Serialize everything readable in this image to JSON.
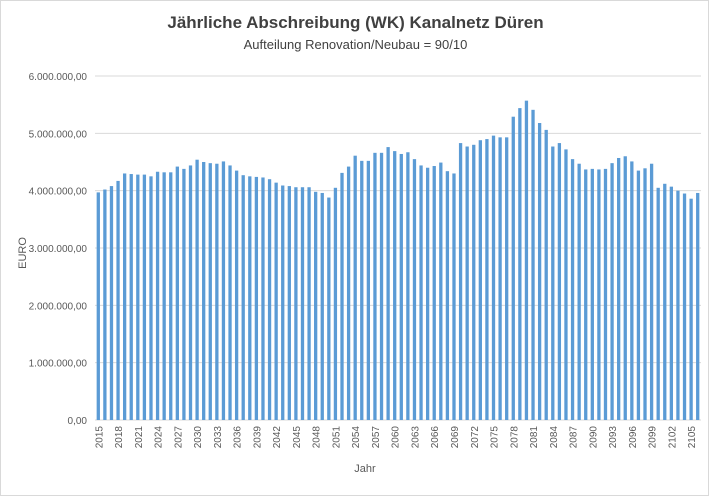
{
  "chart_data": {
    "type": "bar",
    "title": "Jährliche Abschreibung (WK) Kanalnetz Düren",
    "subtitle": "Aufteilung Renovation/Neubau = 90/10",
    "xlabel": "Jahr",
    "ylabel": "EURO",
    "ylim": [
      0,
      6000000
    ],
    "yticks": [
      "0,00",
      "1.000.000,00",
      "2.000.000,00",
      "3.000.000,00",
      "4.000.000,00",
      "5.000.000,00",
      "6.000.000,00"
    ],
    "grid": true,
    "legend": "none",
    "bar_color": "#5b9bd5",
    "grid_color": "#d9d9d9",
    "x_tick_labels": [
      "2015",
      "2018",
      "2021",
      "2024",
      "2027",
      "2030",
      "2033",
      "2036",
      "2039",
      "2042",
      "2045",
      "2048",
      "2051",
      "2054",
      "2057",
      "2060",
      "2063",
      "2066",
      "2069",
      "2072",
      "2075",
      "2078",
      "2081",
      "2084",
      "2087",
      "2090",
      "2093",
      "2096",
      "2099",
      "2102",
      "2105"
    ],
    "x_start": 2015,
    "x_end": 2105,
    "values": [
      3970000,
      4020000,
      4080000,
      4170000,
      4300000,
      4290000,
      4280000,
      4280000,
      4250000,
      4330000,
      4320000,
      4320000,
      4420000,
      4380000,
      4440000,
      4540000,
      4500000,
      4480000,
      4470000,
      4510000,
      4440000,
      4350000,
      4270000,
      4250000,
      4240000,
      4230000,
      4200000,
      4140000,
      4090000,
      4080000,
      4060000,
      4060000,
      4060000,
      3980000,
      3960000,
      3880000,
      4050000,
      4310000,
      4420000,
      4610000,
      4520000,
      4520000,
      4660000,
      4660000,
      4760000,
      4690000,
      4640000,
      4670000,
      4550000,
      4440000,
      4400000,
      4430000,
      4490000,
      4340000,
      4300000,
      4830000,
      4770000,
      4800000,
      4880000,
      4900000,
      4960000,
      4930000,
      4930000,
      5290000,
      5440000,
      5570000,
      5410000,
      5180000,
      5060000,
      4770000,
      4830000,
      4720000,
      4550000,
      4470000,
      4370000,
      4380000,
      4370000,
      4380000,
      4480000,
      4570000,
      4600000,
      4510000,
      4350000,
      4390000,
      4470000,
      4050000,
      4120000,
      4070000,
      4000000,
      3950000,
      3860000,
      3960000
    ]
  }
}
